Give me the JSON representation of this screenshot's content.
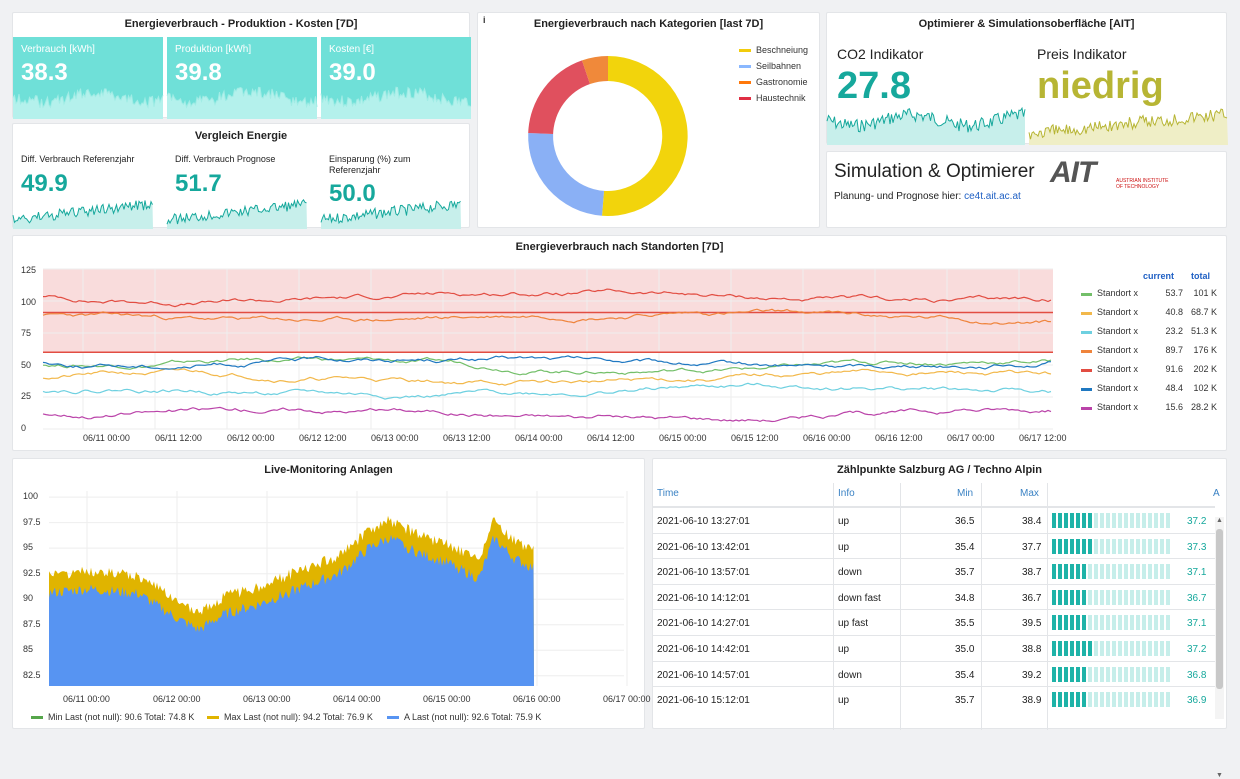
{
  "colors": {
    "teal": "#16a89c",
    "stat_bg": "#6fe0d8",
    "danger_band": "#f8d8d8",
    "olive": "#b7b534"
  },
  "energy_panel": {
    "title": "Energieverbrauch - Produktion - Kosten [7D]",
    "stats": [
      {
        "label": "Verbrauch [kWh]",
        "value": "38.3"
      },
      {
        "label": "Produktion [kWh]",
        "value": "39.8"
      },
      {
        "label": "Kosten [€]",
        "value": "39.0"
      }
    ]
  },
  "compare_panel": {
    "title": "Vergleich Energie",
    "items": [
      {
        "label": "Diff. Verbrauch Referenzjahr",
        "value": "49.9"
      },
      {
        "label": "Diff. Verbrauch Prognose",
        "value": "51.7"
      },
      {
        "label": "Einsparung (%) zum Referenzjahr",
        "value": "50.0"
      }
    ]
  },
  "donut_panel": {
    "title": "Energieverbrauch nach Kategorien [last 7D]",
    "info_icon": "i",
    "legend": [
      {
        "name": "Beschneiung",
        "color": "#f2cc0c"
      },
      {
        "name": "Seilbahnen",
        "color": "#8ab8ff"
      },
      {
        "name": "Gastronomie",
        "color": "#ff780a"
      },
      {
        "name": "Haustechnik",
        "color": "#e02f44"
      }
    ]
  },
  "optimizer_panel": {
    "title": "Optimierer & Simulationsoberfläche [AIT]",
    "co2_label": "CO2 Indikator",
    "co2_value": "27.8",
    "price_label": "Preis Indikator",
    "price_value": "niedrig"
  },
  "sim_panel": {
    "title": "Simulation & Optimierer",
    "text": "Planung- und Prognose hier:",
    "link": "ce4t.ait.ac.at",
    "logo_text": "AIT",
    "logo_sub1": "AUSTRIAN INSTITUTE",
    "logo_sub2": "OF TECHNOLOGY"
  },
  "location_panel": {
    "title": "Energieverbrauch nach Standorten [7D]",
    "col_current": "current",
    "col_total": "total",
    "legend": [
      {
        "name": "Standort x",
        "current": "53.7",
        "total": "101 K",
        "color": "#73bf69"
      },
      {
        "name": "Standort x",
        "current": "40.8",
        "total": "68.7 K",
        "color": "#f2b84b"
      },
      {
        "name": "Standort x",
        "current": "23.2",
        "total": "51.3 K",
        "color": "#6ed0e0"
      },
      {
        "name": "Standort x",
        "current": "89.7",
        "total": "176 K",
        "color": "#ef843c"
      },
      {
        "name": "Standort x",
        "current": "91.6",
        "total": "202 K",
        "color": "#e24d42"
      },
      {
        "name": "Standort x",
        "current": "48.4",
        "total": "102 K",
        "color": "#1f78c1"
      },
      {
        "name": "Standort x",
        "current": "15.6",
        "total": "28.2 K",
        "color": "#ba43a9"
      }
    ],
    "y_ticks": [
      "125",
      "100",
      "75",
      "50",
      "25",
      "0"
    ],
    "x_ticks": [
      "06/11 00:00",
      "06/11 12:00",
      "06/12 00:00",
      "06/12 12:00",
      "06/13 00:00",
      "06/13 12:00",
      "06/14 00:00",
      "06/14 12:00",
      "06/15 00:00",
      "06/15 12:00",
      "06/16 00:00",
      "06/16 12:00",
      "06/17 00:00",
      "06/17 12:00"
    ]
  },
  "live_panel": {
    "title": "Live-Monitoring Anlagen",
    "y_ticks": [
      "100",
      "97.5",
      "95",
      "92.5",
      "90",
      "87.5",
      "85",
      "82.5"
    ],
    "x_ticks": [
      "06/11 00:00",
      "06/12 00:00",
      "06/13 00:00",
      "06/14 00:00",
      "06/15 00:00",
      "06/16 00:00",
      "06/17 00:00"
    ],
    "legend": [
      {
        "text": "Min  Last (not null): 90.6  Total: 74.8 K",
        "color": "#56a64b"
      },
      {
        "text": "Max  Last (not null): 94.2  Total: 76.9 K",
        "color": "#e0b400"
      },
      {
        "text": "A  Last (not null): 92.6  Total: 75.9 K",
        "color": "#5794f2"
      }
    ]
  },
  "table_panel": {
    "title": "Zählpunkte Salzburg AG / Techno Alpin",
    "headers": {
      "time": "Time",
      "info": "Info",
      "min": "Min",
      "max": "Max",
      "a": "A"
    },
    "rows": [
      {
        "time": "2021-06-10 13:27:01",
        "info": "up",
        "min": "36.5",
        "max": "38.4",
        "a": "37.2",
        "fill": 0.33
      },
      {
        "time": "2021-06-10 13:42:01",
        "info": "up",
        "min": "35.4",
        "max": "37.7",
        "a": "37.3",
        "fill": 0.34
      },
      {
        "time": "2021-06-10 13:57:01",
        "info": "down",
        "min": "35.7",
        "max": "38.7",
        "a": "37.1",
        "fill": 0.32
      },
      {
        "time": "2021-06-10 14:12:01",
        "info": "down fast",
        "min": "34.8",
        "max": "36.7",
        "a": "36.7",
        "fill": 0.28
      },
      {
        "time": "2021-06-10 14:27:01",
        "info": "up fast",
        "min": "35.5",
        "max": "39.5",
        "a": "37.1",
        "fill": 0.32
      },
      {
        "time": "2021-06-10 14:42:01",
        "info": "up",
        "min": "35.0",
        "max": "38.8",
        "a": "37.2",
        "fill": 0.33
      },
      {
        "time": "2021-06-10 14:57:01",
        "info": "down",
        "min": "35.4",
        "max": "39.2",
        "a": "36.8",
        "fill": 0.29
      },
      {
        "time": "2021-06-10 15:12:01",
        "info": "up",
        "min": "35.7",
        "max": "38.9",
        "a": "36.9",
        "fill": 0.3
      }
    ]
  }
}
